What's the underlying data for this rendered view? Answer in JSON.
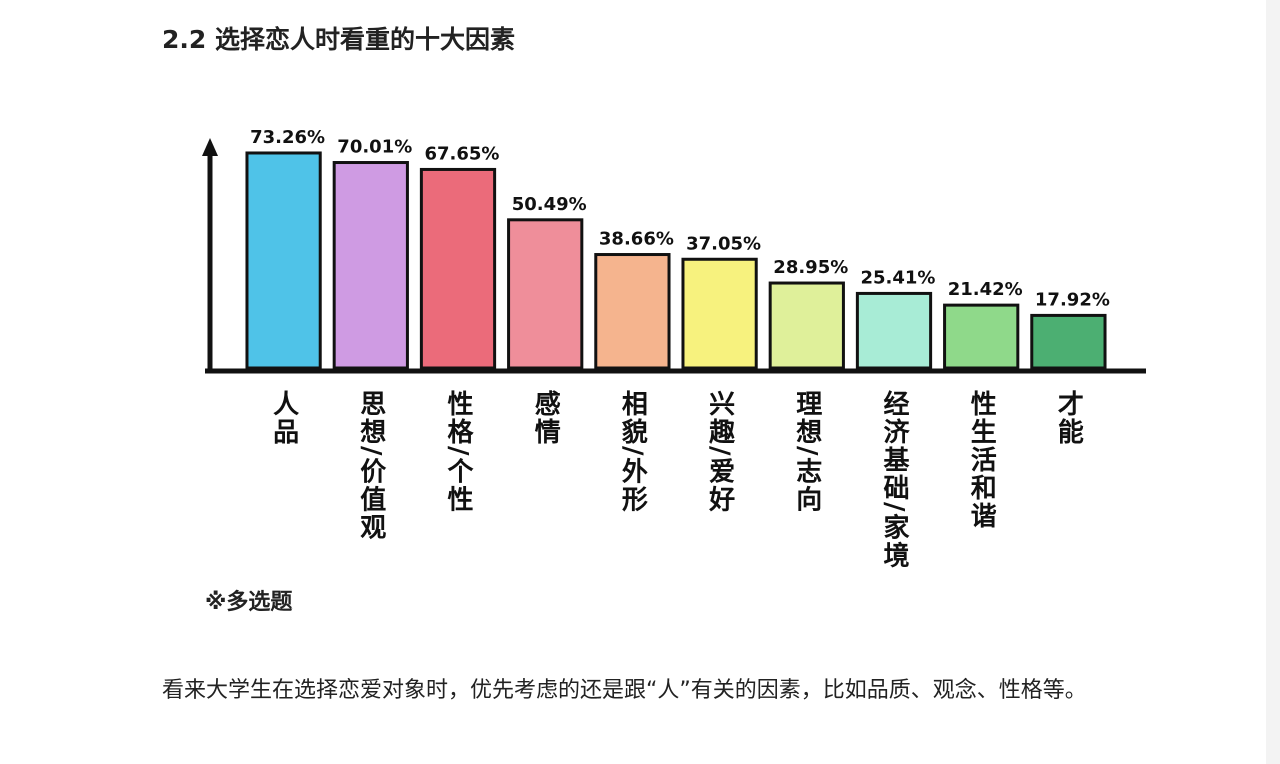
{
  "heading": "2.2 选择恋人时看重的十大因素",
  "chart_data": {
    "type": "bar",
    "categories": [
      "人品",
      "思想/价值观",
      "性格/个性",
      "感情",
      "相貌/外形",
      "兴趣/爱好",
      "理想/志向",
      "经济基础/家境",
      "性生活和谐",
      "才能"
    ],
    "values": [
      73.26,
      70.01,
      67.65,
      50.49,
      38.66,
      37.05,
      28.95,
      25.41,
      21.42,
      17.92
    ],
    "value_labels": [
      "73.26%",
      "70.01%",
      "67.65%",
      "50.49%",
      "38.66%",
      "37.05%",
      "28.95%",
      "25.41%",
      "21.42%",
      "17.92%"
    ],
    "colors": [
      "#4fc3e8",
      "#cf9be3",
      "#eb6b7a",
      "#ef8e9a",
      "#f5b48e",
      "#f7f27e",
      "#dff09a",
      "#a8ecd6",
      "#8fd98a",
      "#4caf72"
    ]
  },
  "note": "※多选题",
  "paragraph": "看来大学生在选择恋爱对象时，优先考虑的还是跟“人”有关的因素，比如品质、观念、性格等。"
}
